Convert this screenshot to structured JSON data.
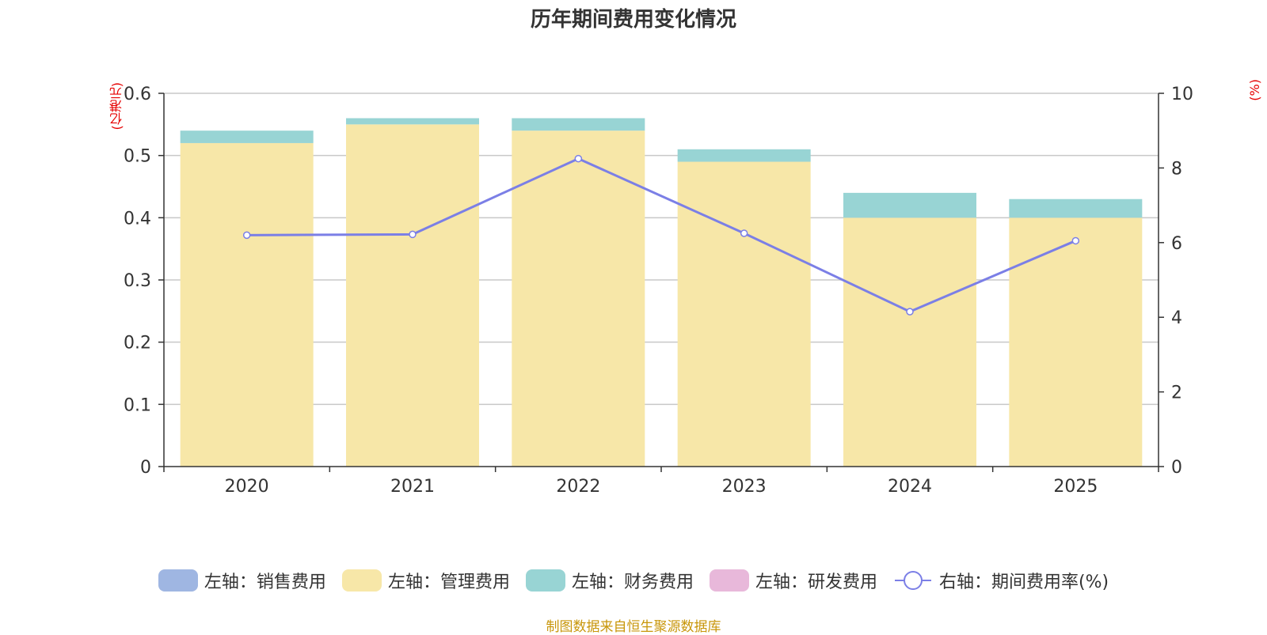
{
  "chart_data": {
    "type": "bar",
    "title": "历年期间费用变化情况",
    "categories": [
      "2020",
      "2021",
      "2022",
      "2023",
      "2024",
      "2025"
    ],
    "stacked": true,
    "series": [
      {
        "name": "左轴：销售费用",
        "axis": "left",
        "color": "#9fb6e2",
        "values": [
          0,
          0,
          0,
          0,
          0,
          0
        ]
      },
      {
        "name": "左轴：管理费用",
        "axis": "left",
        "color": "#f7e7a8",
        "values": [
          0.52,
          0.55,
          0.54,
          0.49,
          0.4,
          0.4
        ]
      },
      {
        "name": "左轴：财务费用",
        "axis": "left",
        "color": "#98d4d4",
        "values": [
          0.02,
          0.01,
          0.02,
          0.02,
          0.04,
          0.03
        ]
      },
      {
        "name": "左轴：研发费用",
        "axis": "left",
        "color": "#e8b8da",
        "values": [
          0,
          0,
          0,
          0,
          0,
          0
        ]
      }
    ],
    "line_series": {
      "name": "右轴：期间费用率(%)",
      "axis": "right",
      "type": "line",
      "color": "#7b7fe6",
      "values": [
        6.2,
        6.22,
        8.25,
        6.25,
        4.15,
        6.05
      ]
    },
    "y_left": {
      "label": "(亿港元)",
      "ylim": [
        0,
        0.6
      ],
      "ticks": [
        "0",
        "0.1",
        "0.2",
        "0.3",
        "0.4",
        "0.5",
        "0.6"
      ]
    },
    "y_right": {
      "label": "(%)",
      "ylim": [
        0,
        10
      ],
      "ticks": [
        "0",
        "2",
        "4",
        "6",
        "8",
        "10"
      ]
    },
    "grid": true,
    "legend_position": "bottom"
  },
  "footer": "制图数据来自恒生聚源数据库"
}
